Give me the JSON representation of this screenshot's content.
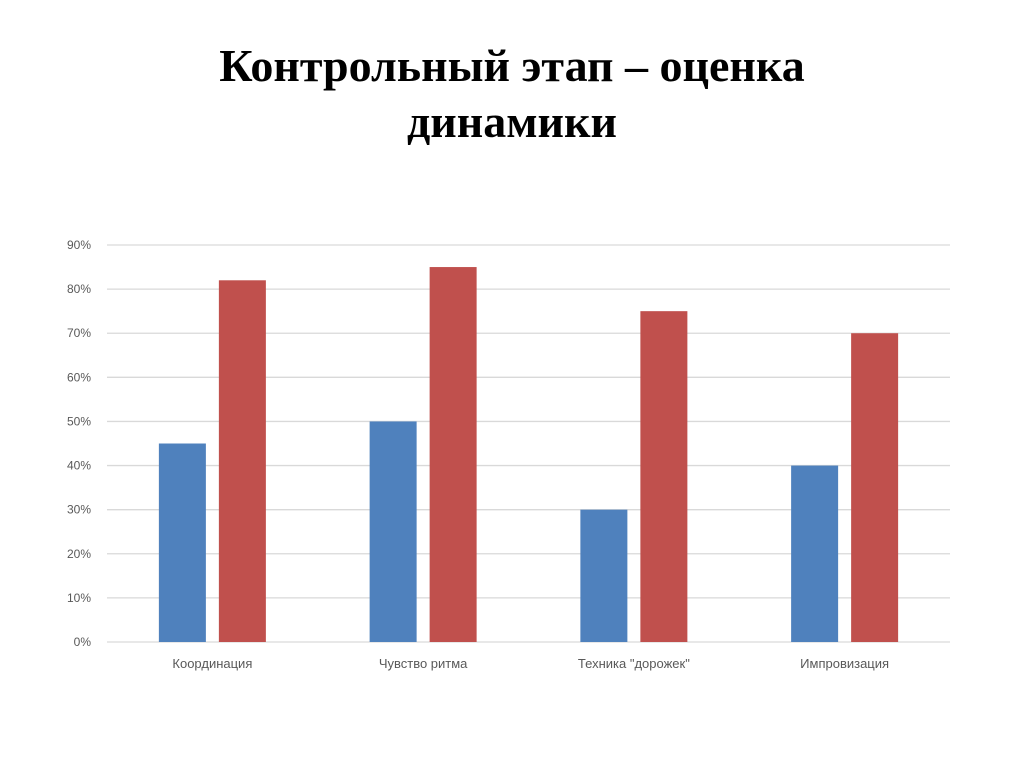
{
  "slide": {
    "title_line1": "Контрольный этап – оценка",
    "title_line2": "динамики"
  },
  "chart_data": {
    "type": "bar",
    "title": "",
    "xlabel": "",
    "ylabel": "",
    "categories": [
      "Координация",
      "Чувство ритма",
      "Техника \"дорожек\"",
      "Импровизация"
    ],
    "series": [
      {
        "values": [
          45,
          50,
          30,
          40
        ],
        "color": "#4F81BD"
      },
      {
        "values": [
          82,
          85,
          75,
          70
        ],
        "color": "#C0504D"
      }
    ],
    "ylim": [
      0,
      90
    ],
    "yticks": [
      "0%",
      "10%",
      "20%",
      "30%",
      "40%",
      "50%",
      "60%",
      "70%",
      "80%",
      "90%"
    ],
    "y_unit": "%",
    "grid": true,
    "legend": "none"
  }
}
